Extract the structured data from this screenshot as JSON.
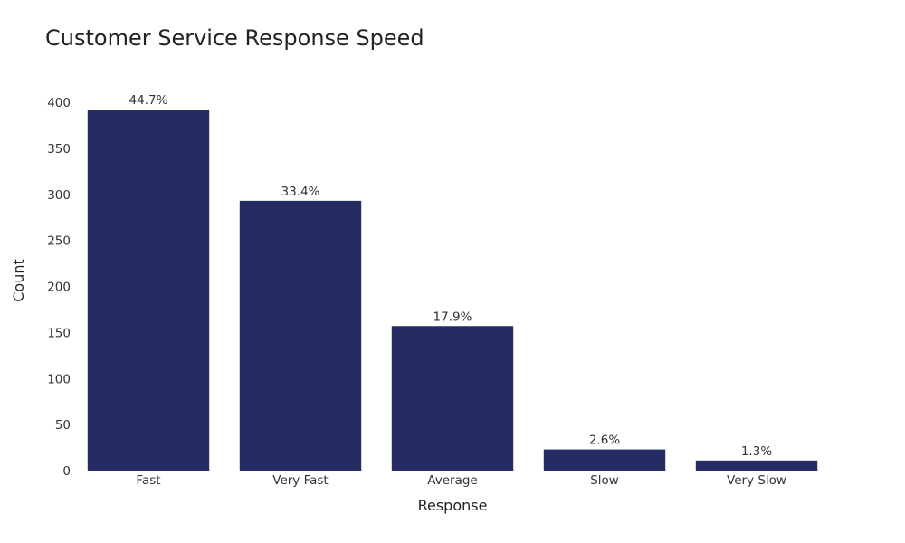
{
  "chart_data": {
    "type": "bar",
    "title": "Customer Service Response Speed",
    "xlabel": "Response",
    "ylabel": "Count",
    "categories": [
      "Fast",
      "Very Fast",
      "Average",
      "Slow",
      "Very Slow"
    ],
    "values": [
      392,
      293,
      157,
      23,
      11
    ],
    "data_labels": [
      "44.7%",
      "33.4%",
      "17.9%",
      "2.6%",
      "1.3%"
    ],
    "ylim": [
      0,
      400
    ],
    "yticks": [
      0,
      50,
      100,
      150,
      200,
      250,
      300,
      350,
      400
    ],
    "grid": false,
    "legend": "none",
    "colors": {
      "bar": "#252B63"
    }
  }
}
